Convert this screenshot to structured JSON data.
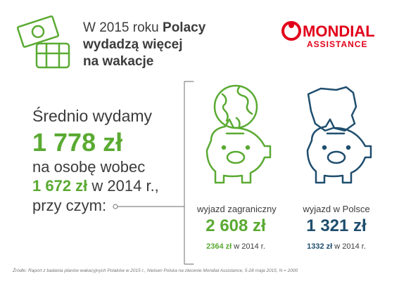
{
  "header": {
    "title_lines": [
      "W 2015 roku",
      "Polacy",
      "wydadzą więcej",
      "na wakacje"
    ]
  },
  "logo": {
    "name": "MONDIAL",
    "subtitle": "ASSISTANCE"
  },
  "summary": {
    "line1": "Średnio wydamy",
    "amount": "1 778 zł",
    "line2": "na osobę wobec",
    "previous_amount": "1 672 zł",
    "previous_suffix": "w 2014 r.,",
    "line3": "przy czym:"
  },
  "cards": [
    {
      "label": "wyjazd zagraniczny",
      "amount": "2 608 zł",
      "previous_amount": "2364 zł",
      "previous_suffix": "w 2014 r."
    },
    {
      "label": "wyjazd w Polsce",
      "amount": "1 321 zł",
      "previous_amount": "1332 zł",
      "previous_suffix": "w 2014 r."
    }
  ],
  "source": "Źródło: Raport z badania planów wakacyjnych Polaków w 2015 r., Nielsen Polska na zlecenie Mondial Assistance, 5-28 maja 2015, N = 2000"
}
